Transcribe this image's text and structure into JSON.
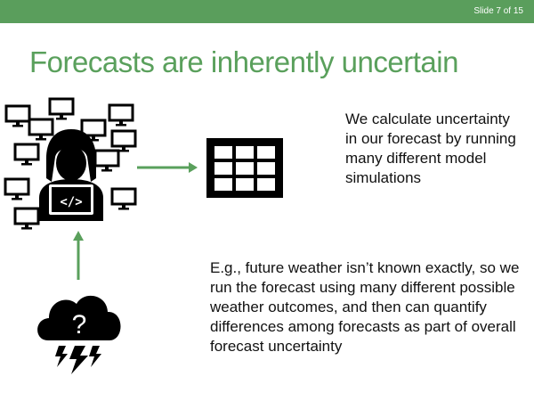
{
  "slide": {
    "number_text": "Slide 7 of 15",
    "title": "Forecasts are inherently uncertain",
    "text_top": "We calculate uncertainty in our forecast by running many different model simulations",
    "text_bottom": "E.g., future weather isn’t known exactly, so we run the forecast using many different possible weather outcomes, and then can quantify differences among forecasts as part of overall forecast uncertainty",
    "question_mark": "?"
  },
  "colors": {
    "header_bar": "#5a9e5c",
    "title": "#5aa05c",
    "arrow": "#5aa05c",
    "icon": "#000000"
  },
  "icons": [
    "monitor-icon",
    "person-laptop-icon",
    "table-grid-icon",
    "storm-cloud-icon",
    "arrow-right-icon",
    "arrow-up-icon"
  ]
}
